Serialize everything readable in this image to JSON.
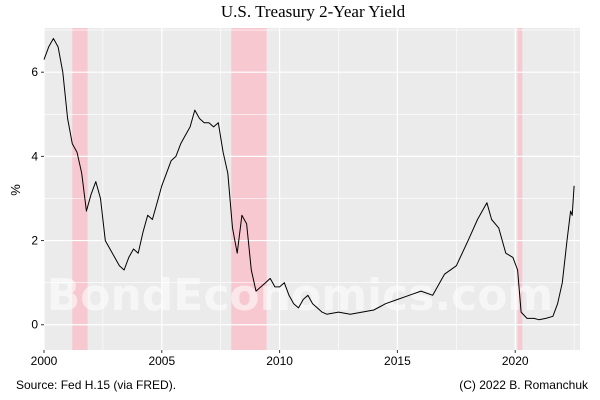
{
  "chart_data": {
    "type": "line",
    "title": "U.S. Treasury 2-Year Yield",
    "ylabel": "%",
    "xlabel": "",
    "xlim": [
      2000,
      2022.75
    ],
    "ylim": [
      -0.6,
      7.05
    ],
    "xticks": [
      2000,
      2005,
      2010,
      2015,
      2020
    ],
    "yticks": [
      0,
      2,
      4,
      6
    ],
    "grid": true,
    "recessions": [
      [
        2001.2,
        2001.85
      ],
      [
        2007.95,
        2009.45
      ],
      [
        2020.1,
        2020.3
      ]
    ],
    "series": [
      {
        "name": "",
        "x": [
          2000.0,
          2000.2,
          2000.4,
          2000.6,
          2000.8,
          2001.0,
          2001.2,
          2001.4,
          2001.6,
          2001.8,
          2002.0,
          2002.2,
          2002.4,
          2002.6,
          2002.8,
          2003.0,
          2003.2,
          2003.4,
          2003.6,
          2003.8,
          2004.0,
          2004.2,
          2004.4,
          2004.6,
          2004.8,
          2005.0,
          2005.2,
          2005.4,
          2005.6,
          2005.8,
          2006.0,
          2006.2,
          2006.4,
          2006.6,
          2006.8,
          2007.0,
          2007.2,
          2007.4,
          2007.6,
          2007.8,
          2008.0,
          2008.2,
          2008.4,
          2008.6,
          2008.8,
          2009.0,
          2009.2,
          2009.4,
          2009.6,
          2009.8,
          2010.0,
          2010.2,
          2010.4,
          2010.6,
          2010.8,
          2011.0,
          2011.2,
          2011.4,
          2011.6,
          2011.8,
          2012.0,
          2012.5,
          2013.0,
          2013.5,
          2014.0,
          2014.5,
          2015.0,
          2015.5,
          2016.0,
          2016.5,
          2017.0,
          2017.5,
          2018.0,
          2018.4,
          2018.8,
          2019.0,
          2019.3,
          2019.6,
          2019.9,
          2020.1,
          2020.25,
          2020.5,
          2020.8,
          2021.0,
          2021.3,
          2021.6,
          2021.8,
          2022.0,
          2022.2,
          2022.35,
          2022.42,
          2022.5
        ],
        "values": [
          6.3,
          6.6,
          6.8,
          6.6,
          6.0,
          4.9,
          4.3,
          4.1,
          3.6,
          2.7,
          3.1,
          3.4,
          3.0,
          2.0,
          1.8,
          1.6,
          1.4,
          1.3,
          1.6,
          1.8,
          1.7,
          2.2,
          2.6,
          2.5,
          2.9,
          3.3,
          3.6,
          3.9,
          4.0,
          4.3,
          4.5,
          4.7,
          5.1,
          4.9,
          4.8,
          4.8,
          4.7,
          4.8,
          4.1,
          3.6,
          2.3,
          1.7,
          2.6,
          2.4,
          1.3,
          0.8,
          0.9,
          1.0,
          1.1,
          0.9,
          0.9,
          1.0,
          0.7,
          0.5,
          0.4,
          0.6,
          0.7,
          0.5,
          0.4,
          0.3,
          0.25,
          0.3,
          0.25,
          0.3,
          0.35,
          0.5,
          0.6,
          0.7,
          0.8,
          0.7,
          1.2,
          1.4,
          2.0,
          2.5,
          2.9,
          2.5,
          2.3,
          1.7,
          1.6,
          1.3,
          0.3,
          0.15,
          0.15,
          0.12,
          0.15,
          0.2,
          0.5,
          1.0,
          2.0,
          2.7,
          2.6,
          3.3
        ]
      }
    ]
  },
  "footer": {
    "source": "Source: Fed H.15 (via FRED).",
    "copyright": "(C) 2022 B. Romanchuk"
  },
  "watermark": "BondEconomics.com",
  "colors": {
    "panel": "#ebebeb",
    "grid": "#ffffff",
    "line": "#000000",
    "recession": "#f7c8d0"
  }
}
